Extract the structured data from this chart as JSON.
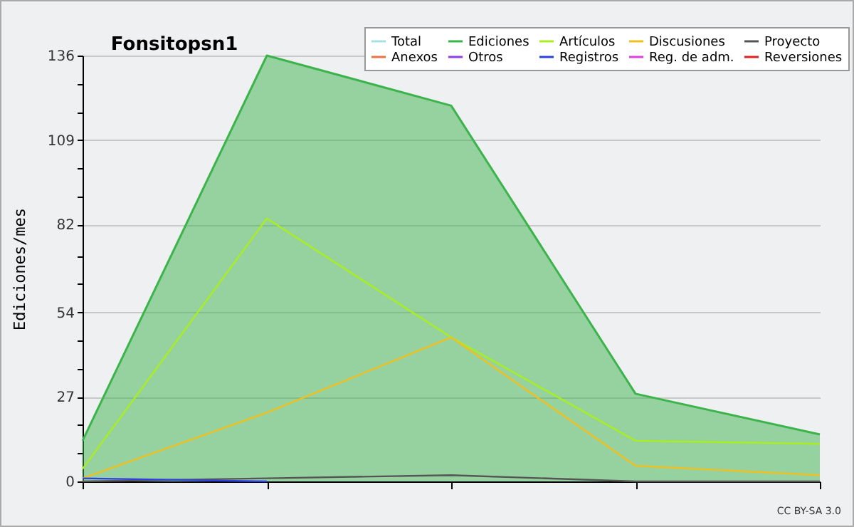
{
  "chart_data": {
    "type": "line",
    "title": "Fonsitopsn1",
    "ylabel": "Ediciones/mes",
    "annotations": [
      "CC BY-SA 3.0"
    ],
    "categories": [
      null,
      null,
      null,
      null,
      null
    ],
    "series": [
      {
        "name": "Total",
        "color": "#a8e0e0",
        "values": [
          null,
          null,
          null,
          null,
          null
        ]
      },
      {
        "name": "Ediciones",
        "type": "area",
        "color": "#3cb44b",
        "values": [
          13,
          136,
          120,
          28,
          15
        ]
      },
      {
        "name": "Artículos",
        "color": "#aaee22",
        "values": [
          4,
          84,
          46,
          13,
          12
        ]
      },
      {
        "name": "Discusiones",
        "color": "#f0c020",
        "values": [
          1,
          22,
          46,
          5,
          2
        ]
      },
      {
        "name": "Proyecto",
        "color": "#555555",
        "values": [
          0,
          1,
          2,
          0,
          0
        ]
      },
      {
        "name": "Anexos",
        "color": "#f07040",
        "values": [
          null,
          null,
          null,
          null,
          null
        ]
      },
      {
        "name": "Otros",
        "color": "#9040e0",
        "values": [
          null,
          null,
          null,
          null,
          null
        ]
      },
      {
        "name": "Registros",
        "color": "#3040e0",
        "values": [
          1,
          0,
          null,
          null,
          null
        ]
      },
      {
        "name": "Reg. de adm.",
        "color": "#e040e0",
        "values": [
          null,
          null,
          null,
          null,
          null
        ]
      },
      {
        "name": "Reversiones",
        "color": "#e02020",
        "values": [
          null,
          null,
          null,
          null,
          null
        ]
      }
    ],
    "ylim": [
      0,
      136
    ],
    "yticks": [
      0,
      {
        "value": 9,
        "label": null
      },
      {
        "value": 18,
        "label": null
      },
      27,
      {
        "value": 36,
        "label": null
      },
      {
        "value": 45,
        "label": null
      },
      54,
      {
        "value": 63,
        "label": null
      },
      {
        "value": 72,
        "label": null
      },
      82,
      {
        "value": 91,
        "label": null
      },
      {
        "value": 100,
        "label": null
      },
      109,
      {
        "value": 118,
        "label": null
      },
      {
        "value": 127,
        "label": null
      },
      136
    ],
    "grid": "y",
    "legend": "top right"
  }
}
